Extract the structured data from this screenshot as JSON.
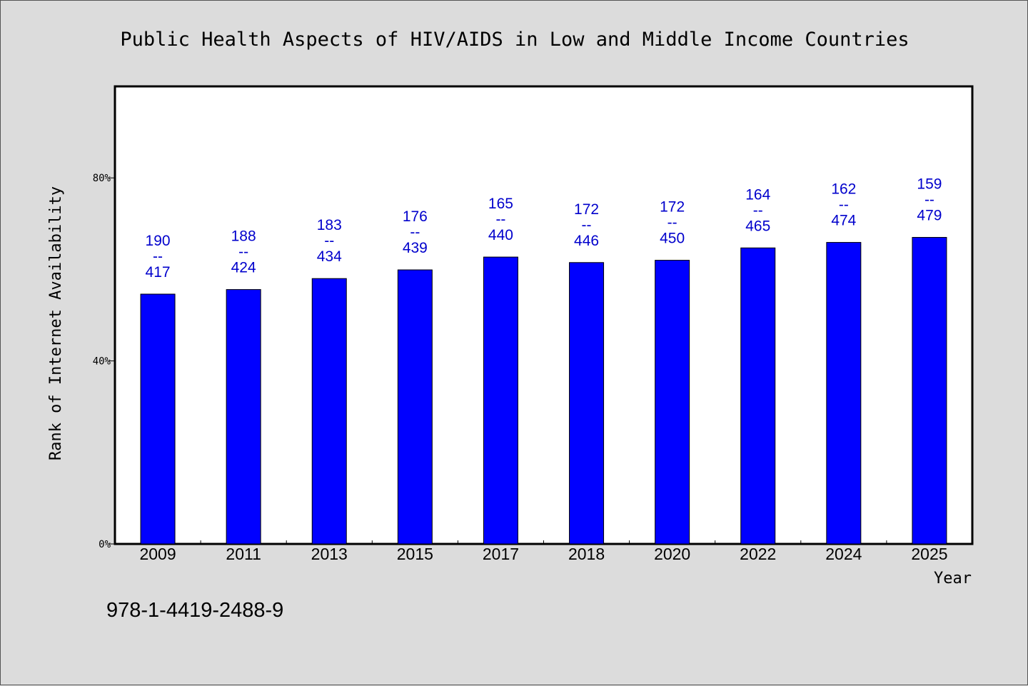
{
  "chart_data": {
    "type": "bar",
    "title": "Public Health Aspects of HIV/AIDS in Low and Middle Income Countries",
    "xlabel": "Year",
    "ylabel": "Rank of Internet Availability",
    "ylim": [
      0,
      100
    ],
    "yticks": [
      {
        "value": 0,
        "label": "0%"
      },
      {
        "value": 40,
        "label": "40%"
      },
      {
        "value": 80,
        "label": "80%"
      }
    ],
    "categories": [
      "2009",
      "2011",
      "2013",
      "2015",
      "2017",
      "2018",
      "2020",
      "2022",
      "2024",
      "2025"
    ],
    "values": [
      54.6,
      55.6,
      58.0,
      59.9,
      62.7,
      61.5,
      62.0,
      64.7,
      65.9,
      67.0
    ],
    "data_labels": [
      {
        "top": "190",
        "mid": "--",
        "bottom": "417"
      },
      {
        "top": "188",
        "mid": "--",
        "bottom": "424"
      },
      {
        "top": "183",
        "mid": "--",
        "bottom": "434"
      },
      {
        "top": "176",
        "mid": "--",
        "bottom": "439"
      },
      {
        "top": "165",
        "mid": "--",
        "bottom": "440"
      },
      {
        "top": "172",
        "mid": "--",
        "bottom": "446"
      },
      {
        "top": "172",
        "mid": "--",
        "bottom": "450"
      },
      {
        "top": "164",
        "mid": "--",
        "bottom": "465"
      },
      {
        "top": "162",
        "mid": "--",
        "bottom": "474"
      },
      {
        "top": "159",
        "mid": "--",
        "bottom": "479"
      }
    ],
    "bar_color": "#0000ff",
    "label_color": "#0000cc",
    "grid": false,
    "legend": "none"
  },
  "footnote": "978-1-4419-2488-9",
  "colors": {
    "background": "#dcdcdc",
    "plot_background": "#ffffff",
    "axis": "#000000"
  }
}
